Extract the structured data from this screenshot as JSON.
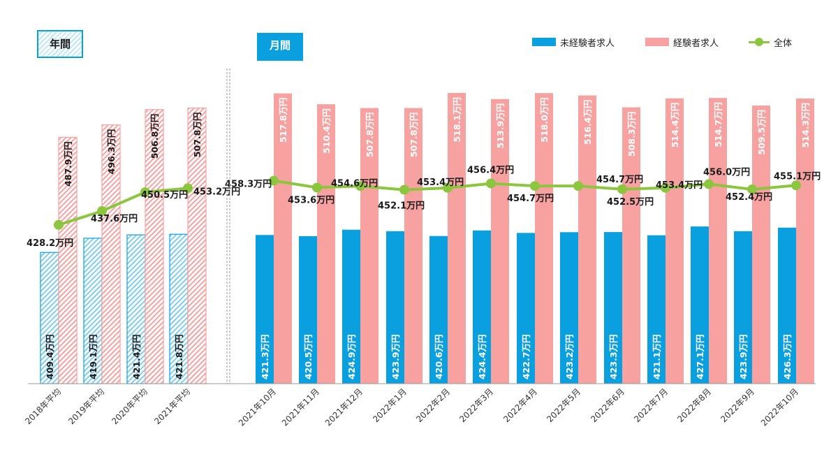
{
  "tags": {
    "annual": "年間",
    "monthly": "月間"
  },
  "legend": [
    {
      "label": "未経験者求人",
      "color": "#0aa0e0"
    },
    {
      "label": "経験者求人",
      "color": "#f7a1a1"
    },
    {
      "label": "全体",
      "color": "#8cc63f"
    }
  ],
  "chart_data": {
    "type": "bar",
    "categories": [
      "2018年平均",
      "2019年平均",
      "2020年平均",
      "2021年平均",
      "2021年10月",
      "2021年11月",
      "2021年12月",
      "2022年1月",
      "2022年2月",
      "2022年3月",
      "2022年4月",
      "2022年5月",
      "2022年6月",
      "2022年7月",
      "2022年8月",
      "2022年9月",
      "2022年10月"
    ],
    "unit": "万円",
    "series": [
      {
        "name": "未経験者求人",
        "type": "bar",
        "color": "#0aa0e0",
        "values": [
          409.4,
          419.1,
          421.4,
          421.8,
          421.3,
          420.5,
          424.9,
          423.9,
          420.6,
          424.4,
          422.7,
          423.2,
          423.3,
          421.1,
          427.1,
          423.9,
          426.3
        ],
        "labels": [
          "409.4万円",
          "419.1万円",
          "421.4万円",
          "421.8万円",
          "421.3万円",
          "420.5万円",
          "424.9万円",
          "423.9万円",
          "420.6万円",
          "424.4万円",
          "422.7万円",
          "423.2万円",
          "423.3万円",
          "421.1万円",
          "427.1万円",
          "423.9万円",
          "426.3万円"
        ]
      },
      {
        "name": "経験者求人",
        "type": "bar",
        "color": "#f7a1a1",
        "values": [
          487.9,
          496.3,
          506.8,
          507.8,
          517.8,
          510.4,
          507.8,
          507.8,
          518.1,
          513.9,
          518.0,
          516.4,
          508.3,
          514.4,
          514.7,
          509.5,
          514.3
        ],
        "labels": [
          "487.9万円",
          "496.3万円",
          "506.8万円",
          "507.8万円",
          "517.8万円",
          "510.4万円",
          "507.8万円",
          "507.8万円",
          "518.1万円",
          "513.9万円",
          "518.0万円",
          "516.4万円",
          "508.3万円",
          "514.4万円",
          "514.7万円",
          "509.5万円",
          "514.3万円"
        ]
      },
      {
        "name": "全体",
        "type": "line",
        "color": "#8cc63f",
        "segments": [
          [
            0,
            3
          ],
          [
            4,
            16
          ]
        ],
        "values": [
          428.2,
          437.6,
          450.5,
          453.2,
          458.3,
          453.6,
          454.6,
          452.1,
          453.4,
          456.4,
          454.7,
          454.7,
          452.5,
          453.4,
          456.0,
          452.4,
          455.1
        ],
        "labels": [
          "428.2万円",
          "437.6万円",
          "450.5万円",
          "453.2万円",
          "458.3万円",
          "453.6万円",
          "454.6万円",
          "452.1万円",
          "453.4万円",
          "456.4万円",
          "454.7万円",
          "454.7万円",
          "452.5万円",
          "453.4万円",
          "456.0万円",
          "452.4万円",
          "455.1万円"
        ]
      }
    ],
    "groups": [
      {
        "label": "年間",
        "indices": [
          0,
          1,
          2,
          3
        ],
        "style": "hatched"
      },
      {
        "label": "月間",
        "indices": [
          4,
          5,
          6,
          7,
          8,
          9,
          10,
          11,
          12,
          13,
          14,
          15,
          16
        ],
        "style": "solid"
      }
    ]
  }
}
